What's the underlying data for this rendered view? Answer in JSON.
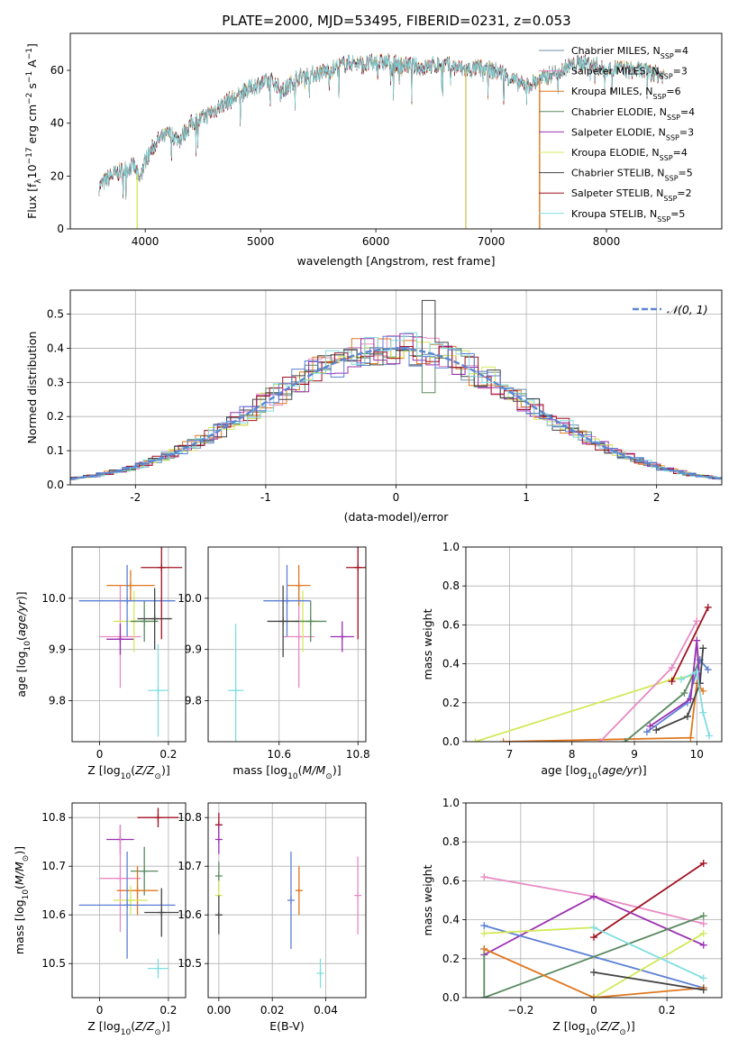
{
  "figure_title": "PLATE=2000, MJD=53495, FIBERID=0231, z=0.053",
  "colors": {
    "chabrier_miles": "#6a8fb0",
    "salpeter_miles": "#e78ac3",
    "kroupa_miles": "#e07820",
    "chabrier_elodie": "#5a8a60",
    "salpeter_elodie": "#9b30b0",
    "kroupa_elodie": "#d4e85a",
    "chabrier_stelib": "#444444",
    "salpeter_stelib": "#a01020",
    "kroupa_stelib": "#80dde0",
    "extra_blue": "#5b7fd6"
  },
  "chart_data": [
    {
      "id": "spectrum",
      "type": "line",
      "title": "PLATE=2000, MJD=53495, FIBERID=0231, z=0.053",
      "xlabel": "wavelength [Angstrom, rest frame]",
      "ylabel": "Flux [f_λ 10^-17 erg cm^-2 s^-1 A^-1]",
      "xlim": [
        3350,
        9000
      ],
      "ylim": [
        0,
        74
      ],
      "xticks": [
        4000,
        5000,
        6000,
        7000,
        8000
      ],
      "yticks": [
        0,
        20,
        40,
        60
      ],
      "legend_position": "top-right",
      "legend": [
        {
          "label": "Chabrier MILES, N",
          "sub": "SSP",
          "val": "=4",
          "color": "#6a8fb0"
        },
        {
          "label": "Salpeter MILES, N",
          "sub": "SSP",
          "val": "=3",
          "color": "#e78ac3"
        },
        {
          "label": "Kroupa MILES, N",
          "sub": "SSP",
          "val": "=6",
          "color": "#e07820"
        },
        {
          "label": "Chabrier ELODIE, N",
          "sub": "SSP",
          "val": "=4",
          "color": "#5a8a60"
        },
        {
          "label": "Salpeter ELODIE, N",
          "sub": "SSP",
          "val": "=3",
          "color": "#9b30b0"
        },
        {
          "label": "Kroupa ELODIE, N",
          "sub": "SSP",
          "val": "=4",
          "color": "#d4e85a"
        },
        {
          "label": "Chabrier STELIB, N",
          "sub": "SSP",
          "val": "=5",
          "color": "#444444"
        },
        {
          "label": "Salpeter STELIB, N",
          "sub": "SSP",
          "val": "=2",
          "color": "#a01020"
        },
        {
          "label": "Kroupa STELIB, N",
          "sub": "SSP",
          "val": "=5",
          "color": "#80dde0"
        }
      ],
      "continuum": [
        [
          3600,
          16
        ],
        [
          3700,
          20
        ],
        [
          3800,
          22
        ],
        [
          3900,
          24
        ],
        [
          3950,
          18
        ],
        [
          4000,
          26
        ],
        [
          4100,
          33
        ],
        [
          4200,
          36
        ],
        [
          4300,
          34
        ],
        [
          4400,
          40
        ],
        [
          4500,
          42
        ],
        [
          4600,
          45
        ],
        [
          4700,
          48
        ],
        [
          4800,
          50
        ],
        [
          4900,
          53
        ],
        [
          5000,
          55
        ],
        [
          5100,
          56
        ],
        [
          5200,
          52
        ],
        [
          5300,
          57
        ],
        [
          5400,
          58
        ],
        [
          5500,
          59
        ],
        [
          5600,
          60
        ],
        [
          5700,
          62
        ],
        [
          5800,
          63
        ],
        [
          5900,
          62
        ],
        [
          6000,
          63
        ],
        [
          6100,
          63
        ],
        [
          6200,
          62
        ],
        [
          6300,
          62
        ],
        [
          6400,
          61
        ],
        [
          6500,
          62
        ],
        [
          6600,
          62
        ],
        [
          6700,
          61
        ],
        [
          6800,
          60
        ],
        [
          6900,
          61
        ],
        [
          7000,
          60
        ],
        [
          7100,
          59
        ],
        [
          7200,
          56
        ],
        [
          7300,
          54
        ],
        [
          7400,
          56
        ],
        [
          7500,
          58
        ],
        [
          7600,
          60
        ],
        [
          7700,
          62
        ],
        [
          7800,
          63
        ],
        [
          7900,
          62
        ],
        [
          8000,
          60
        ],
        [
          8100,
          61
        ],
        [
          8200,
          60
        ],
        [
          8300,
          60
        ],
        [
          8400,
          59
        ],
        [
          8500,
          58
        ]
      ],
      "drops": [
        {
          "x": 3930,
          "color": "#d4e85a"
        },
        {
          "x": 6780,
          "color": "#c8c864"
        },
        {
          "x": 7420,
          "color": "#e07820"
        }
      ]
    },
    {
      "id": "residuals",
      "type": "histogram",
      "xlabel": "(data-model)/error",
      "ylabel": "Normed distribution",
      "xlim": [
        -2.5,
        2.5
      ],
      "ylim": [
        0,
        0.57
      ],
      "xticks": [
        -2,
        -1,
        0,
        1,
        2
      ],
      "yticks": [
        0.0,
        0.1,
        0.2,
        0.3,
        0.4,
        0.5
      ],
      "legend_position": "top-right",
      "legend": "𝒩(0, 1)",
      "model_color": "#5b87d0"
    },
    {
      "id": "age_vs_z",
      "type": "scatter",
      "xlabel": "Z [log10(Z/Z⊙)]",
      "ylabel": "age  [log10(age/yr)]",
      "xlim": [
        -0.08,
        0.25
      ],
      "ylim": [
        9.72,
        10.1
      ],
      "xticks": [
        0.0,
        0.2
      ],
      "yticks": [
        9.8,
        9.9,
        10.0
      ],
      "points": [
        {
          "x": 0.06,
          "y": 9.925,
          "xerr": 0.06,
          "yerr": 0.1,
          "color": "#e78ac3"
        },
        {
          "x": 0.06,
          "y": 9.92,
          "xerr": 0.04,
          "yerr": 0.03,
          "color": "#9b30b0"
        },
        {
          "x": 0.1,
          "y": 9.955,
          "xerr": 0.06,
          "yerr": 0.06,
          "color": "#d4e85a"
        },
        {
          "x": 0.13,
          "y": 9.955,
          "xerr": 0.04,
          "yerr": 0.04,
          "color": "#5a8a60"
        },
        {
          "x": 0.09,
          "y": 10.025,
          "xerr": 0.07,
          "yerr": 0.03,
          "color": "#e07820"
        },
        {
          "x": 0.08,
          "y": 9.995,
          "xerr": 0.14,
          "yerr": 0.07,
          "color": "#5b7fd6"
        },
        {
          "x": 0.16,
          "y": 9.96,
          "xerr": 0.05,
          "yerr": 0.06,
          "color": "#444444"
        },
        {
          "x": 0.18,
          "y": 10.06,
          "xerr": 0.06,
          "yerr": 0.14,
          "color": "#a01020"
        },
        {
          "x": 0.17,
          "y": 9.82,
          "xerr": 0.03,
          "yerr": 0.09,
          "color": "#80dde0"
        }
      ]
    },
    {
      "id": "age_vs_mass",
      "type": "scatter",
      "xlabel": "mass [log10(M/M⊙)]",
      "ylabel": "",
      "xlim": [
        10.42,
        10.82
      ],
      "ylim": [
        9.72,
        10.1
      ],
      "xticks": [
        10.6,
        10.8
      ],
      "yticks": [
        9.8,
        9.9,
        10.0
      ],
      "points": [
        {
          "x": 10.65,
          "y": 9.925,
          "xerr": 0.04,
          "yerr": 0.1,
          "color": "#e78ac3"
        },
        {
          "x": 10.76,
          "y": 9.925,
          "xerr": 0.03,
          "yerr": 0.03,
          "color": "#9b30b0"
        },
        {
          "x": 10.66,
          "y": 9.955,
          "xerr": 0.04,
          "yerr": 0.06,
          "color": "#d4e85a"
        },
        {
          "x": 10.68,
          "y": 9.955,
          "xerr": 0.04,
          "yerr": 0.04,
          "color": "#5a8a60"
        },
        {
          "x": 10.65,
          "y": 10.025,
          "xerr": 0.03,
          "yerr": 0.04,
          "color": "#e07820"
        },
        {
          "x": 10.62,
          "y": 9.995,
          "xerr": 0.06,
          "yerr": 0.07,
          "color": "#5b7fd6"
        },
        {
          "x": 10.61,
          "y": 9.955,
          "xerr": 0.04,
          "yerr": 0.07,
          "color": "#444444"
        },
        {
          "x": 10.8,
          "y": 10.06,
          "xerr": 0.03,
          "yerr": 0.14,
          "color": "#a01020"
        },
        {
          "x": 10.49,
          "y": 9.82,
          "xerr": 0.02,
          "yerr": 0.13,
          "color": "#80dde0"
        }
      ]
    },
    {
      "id": "weight_vs_age",
      "type": "line",
      "xlabel": "age  [log10(age/yr)]",
      "ylabel": "mass weight",
      "xlim": [
        6.3,
        10.4
      ],
      "ylim": [
        0,
        1
      ],
      "xticks": [
        7,
        8,
        9,
        10
      ],
      "yticks": [
        0.0,
        0.2,
        0.4,
        0.6,
        0.8,
        1.0
      ],
      "series": [
        {
          "color": "#d4e85a",
          "x": [
            6.45,
            9.6,
            9.95
          ],
          "y": [
            0.0,
            0.32,
            0.34
          ]
        },
        {
          "color": "#e07820",
          "x": [
            6.9,
            9.9,
            10.0,
            10.1
          ],
          "y": [
            0.0,
            0.02,
            0.3,
            0.26
          ]
        },
        {
          "color": "#e78ac3",
          "x": [
            8.45,
            9.6,
            10.0
          ],
          "y": [
            0.0,
            0.38,
            0.62
          ]
        },
        {
          "color": "#a01020",
          "x": [
            9.6,
            10.18
          ],
          "y": [
            0.31,
            0.69
          ]
        },
        {
          "color": "#5a8a60",
          "x": [
            8.85,
            9.8,
            10.05
          ],
          "y": [
            0.0,
            0.25,
            0.42
          ]
        },
        {
          "color": "#5b7fd6",
          "x": [
            9.2,
            9.85,
            10.05,
            10.18
          ],
          "y": [
            0.05,
            0.2,
            0.42,
            0.37
          ]
        },
        {
          "color": "#9b30b0",
          "x": [
            9.25,
            9.9,
            10.0,
            10.05
          ],
          "y": [
            0.08,
            0.22,
            0.52,
            0.3
          ]
        },
        {
          "color": "#444444",
          "x": [
            9.35,
            9.85,
            10.05,
            10.1
          ],
          "y": [
            0.06,
            0.13,
            0.3,
            0.48
          ]
        },
        {
          "color": "#80dde0",
          "x": [
            9.75,
            10.0,
            10.1,
            10.2
          ],
          "y": [
            0.32,
            0.36,
            0.15,
            0.03
          ]
        }
      ]
    },
    {
      "id": "mass_vs_z",
      "type": "scatter",
      "xlabel": "Z [log10(Z/Z⊙)]",
      "ylabel": "mass [log10(M/M⊙)]",
      "xlim": [
        -0.08,
        0.25
      ],
      "ylim": [
        10.43,
        10.83
      ],
      "xticks": [
        0.0,
        0.2
      ],
      "yticks": [
        10.5,
        10.6,
        10.7,
        10.8
      ],
      "points": [
        {
          "x": 0.06,
          "y": 10.755,
          "xerr": 0.04,
          "yerr": 0.03,
          "color": "#9b30b0"
        },
        {
          "x": 0.06,
          "y": 10.675,
          "xerr": 0.06,
          "yerr": 0.11,
          "color": "#e78ac3"
        },
        {
          "x": 0.13,
          "y": 10.69,
          "xerr": 0.04,
          "yerr": 0.05,
          "color": "#5a8a60"
        },
        {
          "x": 0.11,
          "y": 10.65,
          "xerr": 0.06,
          "yerr": 0.05,
          "color": "#e07820"
        },
        {
          "x": 0.09,
          "y": 10.63,
          "xerr": 0.05,
          "yerr": 0.03,
          "color": "#d4e85a"
        },
        {
          "x": 0.08,
          "y": 10.62,
          "xerr": 0.14,
          "yerr": 0.11,
          "color": "#5b7fd6"
        },
        {
          "x": 0.18,
          "y": 10.605,
          "xerr": 0.05,
          "yerr": 0.05,
          "color": "#444444"
        },
        {
          "x": 0.17,
          "y": 10.8,
          "xerr": 0.06,
          "yerr": 0.02,
          "color": "#a01020"
        },
        {
          "x": 0.17,
          "y": 10.49,
          "xerr": 0.03,
          "yerr": 0.02,
          "color": "#80dde0"
        }
      ]
    },
    {
      "id": "mass_vs_ebv",
      "type": "scatter",
      "xlabel": "E(B-V)",
      "ylabel": "",
      "xlim": [
        -0.004,
        0.055
      ],
      "ylim": [
        10.43,
        10.83
      ],
      "xticks": [
        0.0,
        0.02,
        0.04
      ],
      "xtick_labels": [
        "0.00",
        "0.02",
        "0.04"
      ],
      "yticks": [
        10.5,
        10.6,
        10.7,
        10.8
      ],
      "points": [
        {
          "x": 0.0,
          "y": 10.785,
          "xerr": 0,
          "yerr": 0.025,
          "color": "#a01020"
        },
        {
          "x": 0.0,
          "y": 10.755,
          "xerr": 0,
          "yerr": 0.03,
          "color": "#9b30b0"
        },
        {
          "x": 0.0,
          "y": 10.68,
          "xerr": 0,
          "yerr": 0.03,
          "color": "#5a8a60"
        },
        {
          "x": 0.0,
          "y": 10.64,
          "xerr": 0,
          "yerr": 0.03,
          "color": "#d4e85a"
        },
        {
          "x": 0.0,
          "y": 10.6,
          "xerr": 0,
          "yerr": 0.04,
          "color": "#444444"
        },
        {
          "x": 0.027,
          "y": 10.63,
          "xerr": 0,
          "yerr": 0.1,
          "color": "#5b7fd6"
        },
        {
          "x": 0.03,
          "y": 10.65,
          "xerr": 0,
          "yerr": 0.05,
          "color": "#e07820"
        },
        {
          "x": 0.038,
          "y": 10.48,
          "xerr": 0,
          "yerr": 0.03,
          "color": "#80dde0"
        },
        {
          "x": 0.052,
          "y": 10.64,
          "xerr": 0,
          "yerr": 0.08,
          "color": "#e78ac3"
        }
      ]
    },
    {
      "id": "weight_vs_z",
      "type": "line",
      "xlabel": "Z [log10(Z/Z⊙)]",
      "ylabel": "mass weight",
      "xlim": [
        -0.35,
        0.35
      ],
      "ylim": [
        0,
        1
      ],
      "xticks": [
        -0.2,
        0.0,
        0.2
      ],
      "yticks": [
        0.0,
        0.2,
        0.4,
        0.6,
        0.8,
        1.0
      ],
      "series": [
        {
          "color": "#e78ac3",
          "x": [
            -0.3,
            0.0,
            0.3
          ],
          "y": [
            0.62,
            0.52,
            0.38
          ]
        },
        {
          "color": "#a01020",
          "x": [
            0.0,
            0.3
          ],
          "y": [
            0.31,
            0.69
          ]
        },
        {
          "color": "#9b30b0",
          "x": [
            -0.3,
            0.0,
            0.3
          ],
          "y": [
            0.22,
            0.52,
            0.27
          ]
        },
        {
          "color": "#5b7fd6",
          "x": [
            -0.3,
            0.3
          ],
          "y": [
            0.37,
            0.05
          ]
        },
        {
          "color": "#d4e85a",
          "x": [
            -0.3,
            0.0
          ],
          "y": [
            0.33,
            0.36
          ]
        },
        {
          "color": "#d4e85a",
          "x": [
            0.0,
            0.3
          ],
          "y": [
            0.0,
            0.33
          ]
        },
        {
          "color": "#5a8a60",
          "x": [
            -0.3,
            0.3
          ],
          "y": [
            0.0,
            0.42
          ]
        },
        {
          "color": "#5a8a60",
          "x": [
            -0.3,
            -0.3
          ],
          "y": [
            0.0,
            0.25
          ]
        },
        {
          "color": "#e07820",
          "x": [
            -0.3,
            0.0,
            0.3
          ],
          "y": [
            0.25,
            0.0,
            0.05
          ]
        },
        {
          "color": "#444444",
          "x": [
            0.0,
            0.3
          ],
          "y": [
            0.13,
            0.04
          ]
        },
        {
          "color": "#80dde0",
          "x": [
            0.0,
            0.3
          ],
          "y": [
            0.36,
            0.1
          ]
        }
      ]
    }
  ]
}
